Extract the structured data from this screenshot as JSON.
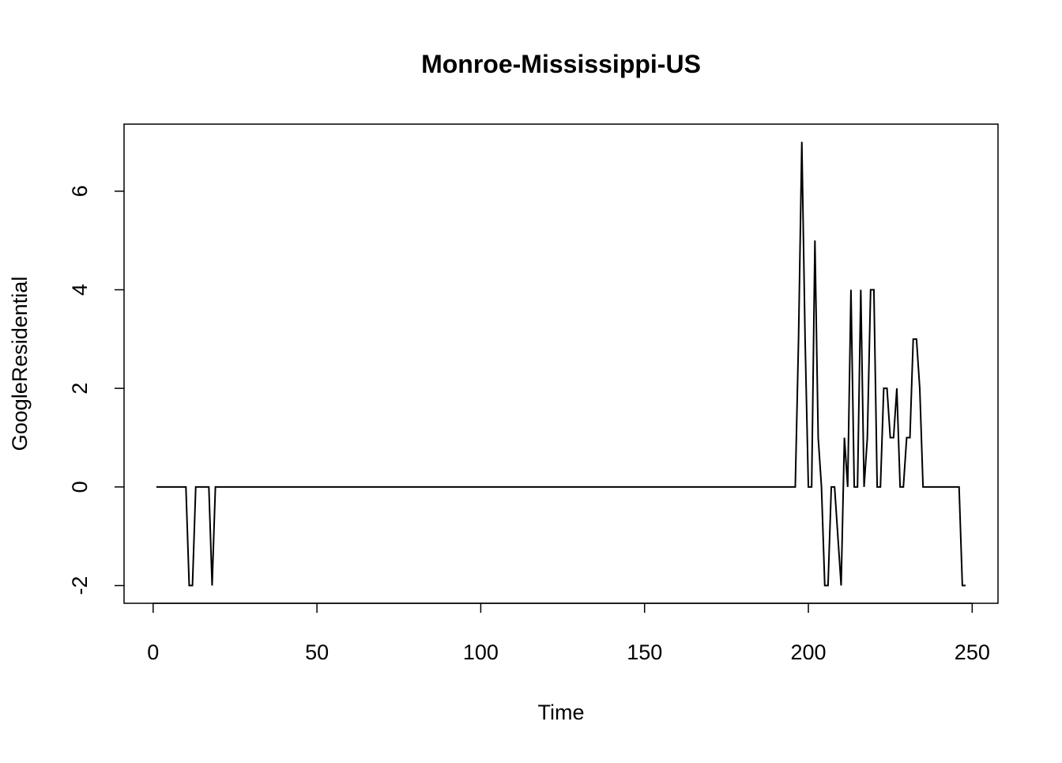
{
  "chart_data": {
    "type": "line",
    "title": "Monroe-Mississippi-US",
    "x_label": "Time",
    "y_label": "GoogleResidential",
    "color": "#000000",
    "x": [
      1,
      2,
      3,
      4,
      5,
      6,
      7,
      8,
      9,
      10,
      11,
      12,
      13,
      14,
      15,
      16,
      17,
      18,
      19,
      20,
      21,
      22,
      23,
      24,
      25,
      26,
      27,
      28,
      29,
      30,
      31,
      32,
      33,
      34,
      35,
      36,
      37,
      38,
      39,
      40,
      41,
      42,
      43,
      44,
      45,
      46,
      47,
      48,
      49,
      50,
      51,
      52,
      53,
      54,
      55,
      56,
      57,
      58,
      59,
      60,
      61,
      62,
      63,
      64,
      65,
      66,
      67,
      68,
      69,
      70,
      71,
      72,
      73,
      74,
      75,
      76,
      77,
      78,
      79,
      80,
      81,
      82,
      83,
      84,
      85,
      86,
      87,
      88,
      89,
      90,
      91,
      92,
      93,
      94,
      95,
      96,
      97,
      98,
      99,
      100,
      101,
      102,
      103,
      104,
      105,
      106,
      107,
      108,
      109,
      110,
      111,
      112,
      113,
      114,
      115,
      116,
      117,
      118,
      119,
      120,
      121,
      122,
      123,
      124,
      125,
      126,
      127,
      128,
      129,
      130,
      131,
      132,
      133,
      134,
      135,
      136,
      137,
      138,
      139,
      140,
      141,
      142,
      143,
      144,
      145,
      146,
      147,
      148,
      149,
      150,
      151,
      152,
      153,
      154,
      155,
      156,
      157,
      158,
      159,
      160,
      161,
      162,
      163,
      164,
      165,
      166,
      167,
      168,
      169,
      170,
      171,
      172,
      173,
      174,
      175,
      176,
      177,
      178,
      179,
      180,
      181,
      182,
      183,
      184,
      185,
      186,
      187,
      188,
      189,
      190,
      191,
      192,
      193,
      194,
      195,
      196,
      197,
      198,
      199,
      200,
      201,
      202,
      203,
      204,
      205,
      206,
      207,
      208,
      209,
      210,
      211,
      212,
      213,
      214,
      215,
      216,
      217,
      218,
      219,
      220,
      221,
      222,
      223,
      224,
      225,
      226,
      227,
      228,
      229,
      230,
      231,
      232,
      233,
      234,
      235,
      236,
      237,
      238,
      239,
      240,
      241,
      242,
      243,
      244,
      245,
      246,
      247,
      248
    ],
    "values": [
      0,
      0,
      0,
      0,
      0,
      0,
      0,
      0,
      0,
      0,
      -2,
      -2,
      0,
      0,
      0,
      0,
      0,
      -2,
      0,
      0,
      0,
      0,
      0,
      0,
      0,
      0,
      0,
      0,
      0,
      0,
      0,
      0,
      0,
      0,
      0,
      0,
      0,
      0,
      0,
      0,
      0,
      0,
      0,
      0,
      0,
      0,
      0,
      0,
      0,
      0,
      0,
      0,
      0,
      0,
      0,
      0,
      0,
      0,
      0,
      0,
      0,
      0,
      0,
      0,
      0,
      0,
      0,
      0,
      0,
      0,
      0,
      0,
      0,
      0,
      0,
      0,
      0,
      0,
      0,
      0,
      0,
      0,
      0,
      0,
      0,
      0,
      0,
      0,
      0,
      0,
      0,
      0,
      0,
      0,
      0,
      0,
      0,
      0,
      0,
      0,
      0,
      0,
      0,
      0,
      0,
      0,
      0,
      0,
      0,
      0,
      0,
      0,
      0,
      0,
      0,
      0,
      0,
      0,
      0,
      0,
      0,
      0,
      0,
      0,
      0,
      0,
      0,
      0,
      0,
      0,
      0,
      0,
      0,
      0,
      0,
      0,
      0,
      0,
      0,
      0,
      0,
      0,
      0,
      0,
      0,
      0,
      0,
      0,
      0,
      0,
      0,
      0,
      0,
      0,
      0,
      0,
      0,
      0,
      0,
      0,
      0,
      0,
      0,
      0,
      0,
      0,
      0,
      0,
      0,
      0,
      0,
      0,
      0,
      0,
      0,
      0,
      0,
      0,
      0,
      0,
      0,
      0,
      0,
      0,
      0,
      0,
      0,
      0,
      0,
      0,
      0,
      0,
      0,
      0,
      0,
      0,
      3,
      7,
      3,
      0,
      0,
      5,
      1,
      0,
      -2,
      -2,
      0,
      0,
      -1,
      -2,
      1,
      0,
      4,
      0,
      0,
      4,
      0,
      1,
      4,
      4,
      0,
      0,
      2,
      2,
      1,
      1,
      2,
      0,
      0,
      1,
      1,
      3,
      3,
      2,
      0,
      0,
      0,
      0,
      0,
      0,
      0,
      0,
      0,
      0,
      0,
      0,
      -2,
      -2
    ],
    "xlim": [
      -8.88,
      257.88
    ],
    "ylim": [
      -2.36,
      7.36
    ],
    "xticks": [
      0,
      50,
      100,
      150,
      200,
      250
    ],
    "yticks": [
      -2,
      0,
      2,
      4,
      6
    ]
  }
}
